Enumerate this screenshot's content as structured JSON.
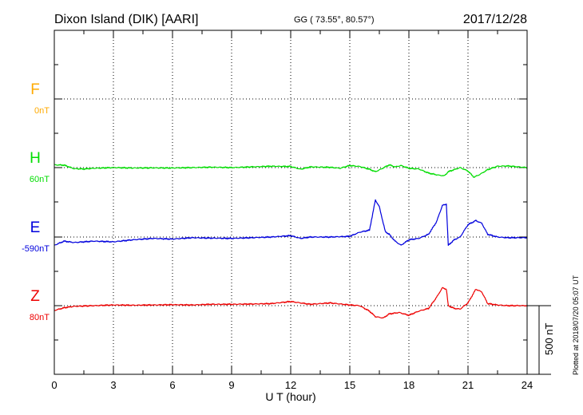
{
  "header": {
    "station": "Dixon Island (DIK)  [AARI]",
    "coords": "GG ( 73.55°,  80.57°)",
    "date": "2017/12/28"
  },
  "footer_note": "Plotted at 2018/07/20 05:07 UT",
  "chart_data": {
    "type": "line",
    "title": "Dixon Island (DIK)  [AARI]",
    "xlabel": "U T (hour)",
    "xlim": [
      0,
      24
    ],
    "xticks": [
      "0",
      "3",
      "6",
      "9",
      "12",
      "15",
      "18",
      "21",
      "24"
    ],
    "grid": true,
    "scale_bar": {
      "label": "500 nT",
      "value_nT": 500
    },
    "series": [
      {
        "name": "F",
        "baseline": "0nT",
        "color": "#ffaa00",
        "lane": 0,
        "points": []
      },
      {
        "name": "H",
        "baseline": "60nT",
        "color": "#00dd00",
        "lane": 1,
        "points": [
          [
            0,
            20
          ],
          [
            0.5,
            18
          ],
          [
            1,
            -8
          ],
          [
            1.5,
            -10
          ],
          [
            2,
            -5
          ],
          [
            3,
            0
          ],
          [
            4,
            -3
          ],
          [
            5,
            -2
          ],
          [
            6,
            -3
          ],
          [
            7,
            0
          ],
          [
            8,
            3
          ],
          [
            9,
            0
          ],
          [
            10,
            5
          ],
          [
            11,
            10
          ],
          [
            12,
            8
          ],
          [
            12.5,
            -12
          ],
          [
            13,
            5
          ],
          [
            14,
            2
          ],
          [
            14.5,
            -5
          ],
          [
            15,
            15
          ],
          [
            15.5,
            8
          ],
          [
            16,
            -12
          ],
          [
            16.3,
            -30
          ],
          [
            16.6,
            -10
          ],
          [
            17,
            20
          ],
          [
            17.3,
            5
          ],
          [
            17.6,
            15
          ],
          [
            18,
            -5
          ],
          [
            18.5,
            -10
          ],
          [
            19,
            -40
          ],
          [
            19.5,
            -55
          ],
          [
            19.8,
            -60
          ],
          [
            20,
            -30
          ],
          [
            20.3,
            -15
          ],
          [
            20.6,
            0
          ],
          [
            21,
            -25
          ],
          [
            21.3,
            -70
          ],
          [
            21.6,
            -50
          ],
          [
            22,
            -15
          ],
          [
            22.5,
            10
          ],
          [
            23,
            12
          ],
          [
            24,
            0
          ]
        ]
      },
      {
        "name": "E",
        "baseline": "-590nT",
        "color": "#0000dd",
        "lane": 2,
        "points": [
          [
            0,
            -60
          ],
          [
            0.5,
            -30
          ],
          [
            1,
            -40
          ],
          [
            2,
            -30
          ],
          [
            3,
            -35
          ],
          [
            4,
            -20
          ],
          [
            5,
            -10
          ],
          [
            6,
            -15
          ],
          [
            7,
            -5
          ],
          [
            8,
            -8
          ],
          [
            9,
            -10
          ],
          [
            10,
            -5
          ],
          [
            11,
            0
          ],
          [
            12,
            10
          ],
          [
            12.5,
            -10
          ],
          [
            13,
            0
          ],
          [
            14,
            0
          ],
          [
            15,
            5
          ],
          [
            15.5,
            35
          ],
          [
            16,
            50
          ],
          [
            16.3,
            270
          ],
          [
            16.5,
            220
          ],
          [
            16.8,
            40
          ],
          [
            17,
            20
          ],
          [
            17.3,
            -30
          ],
          [
            17.6,
            -60
          ],
          [
            18,
            -20
          ],
          [
            18.5,
            -10
          ],
          [
            19,
            20
          ],
          [
            19.4,
            110
          ],
          [
            19.7,
            230
          ],
          [
            19.9,
            240
          ],
          [
            20,
            -60
          ],
          [
            20.3,
            -20
          ],
          [
            20.6,
            0
          ],
          [
            21,
            90
          ],
          [
            21.4,
            120
          ],
          [
            21.7,
            100
          ],
          [
            22,
            20
          ],
          [
            22.5,
            0
          ],
          [
            23,
            -5
          ],
          [
            24,
            -5
          ]
        ]
      },
      {
        "name": "Z",
        "baseline": "80nT",
        "color": "#ee0000",
        "lane": 3,
        "points": [
          [
            0,
            -35
          ],
          [
            0.5,
            -15
          ],
          [
            1,
            -5
          ],
          [
            2,
            0
          ],
          [
            3,
            5
          ],
          [
            4,
            3
          ],
          [
            5,
            5
          ],
          [
            6,
            7
          ],
          [
            7,
            5
          ],
          [
            8,
            10
          ],
          [
            9,
            10
          ],
          [
            10,
            12
          ],
          [
            11,
            15
          ],
          [
            12,
            30
          ],
          [
            12.5,
            20
          ],
          [
            13,
            10
          ],
          [
            14,
            20
          ],
          [
            15,
            5
          ],
          [
            15.5,
            0
          ],
          [
            16,
            -40
          ],
          [
            16.3,
            -80
          ],
          [
            16.7,
            -90
          ],
          [
            17,
            -60
          ],
          [
            17.5,
            -50
          ],
          [
            18,
            -70
          ],
          [
            18.5,
            -40
          ],
          [
            19,
            -20
          ],
          [
            19.4,
            60
          ],
          [
            19.7,
            130
          ],
          [
            19.9,
            120
          ],
          [
            20,
            0
          ],
          [
            20.3,
            -20
          ],
          [
            20.6,
            -25
          ],
          [
            21,
            20
          ],
          [
            21.4,
            120
          ],
          [
            21.7,
            100
          ],
          [
            22,
            15
          ],
          [
            22.5,
            5
          ],
          [
            23,
            0
          ],
          [
            24,
            0
          ]
        ]
      }
    ]
  }
}
